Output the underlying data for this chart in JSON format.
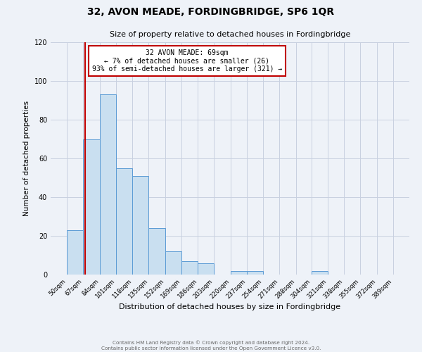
{
  "title": "32, AVON MEADE, FORDINGBRIDGE, SP6 1QR",
  "subtitle": "Size of property relative to detached houses in Fordingbridge",
  "xlabel": "Distribution of detached houses by size in Fordingbridge",
  "ylabel": "Number of detached properties",
  "bin_edges": [
    50,
    67,
    84,
    101,
    118,
    135,
    152,
    169,
    186,
    203,
    220,
    237,
    254,
    271,
    288,
    304,
    321,
    338,
    355,
    372,
    389
  ],
  "bin_labels": [
    "50sqm",
    "67sqm",
    "84sqm",
    "101sqm",
    "118sqm",
    "135sqm",
    "152sqm",
    "169sqm",
    "186sqm",
    "203sqm",
    "220sqm",
    "237sqm",
    "254sqm",
    "271sqm",
    "288sqm",
    "304sqm",
    "321sqm",
    "338sqm",
    "355sqm",
    "372sqm",
    "389sqm"
  ],
  "counts": [
    23,
    70,
    93,
    55,
    51,
    24,
    12,
    7,
    6,
    0,
    2,
    2,
    0,
    0,
    0,
    2,
    0,
    0,
    0,
    0
  ],
  "bar_color": "#c9dff0",
  "bar_edge_color": "#5b9bd5",
  "vline_x": 69,
  "vline_color": "#c00000",
  "ylim": [
    0,
    120
  ],
  "annotation_line1": "32 AVON MEADE: 69sqm",
  "annotation_line2": "← 7% of detached houses are smaller (26)",
  "annotation_line3": "93% of semi-detached houses are larger (321) →",
  "annotation_box_color": "#ffffff",
  "annotation_box_edge": "#c00000",
  "footer1": "Contains HM Land Registry data © Crown copyright and database right 2024.",
  "footer2": "Contains public sector information licensed under the Open Government Licence v3.0.",
  "background_color": "#eef2f8",
  "grid_color": "#c8d0e0",
  "title_fontsize": 10,
  "subtitle_fontsize": 8,
  "ylabel_fontsize": 7.5,
  "xlabel_fontsize": 8
}
